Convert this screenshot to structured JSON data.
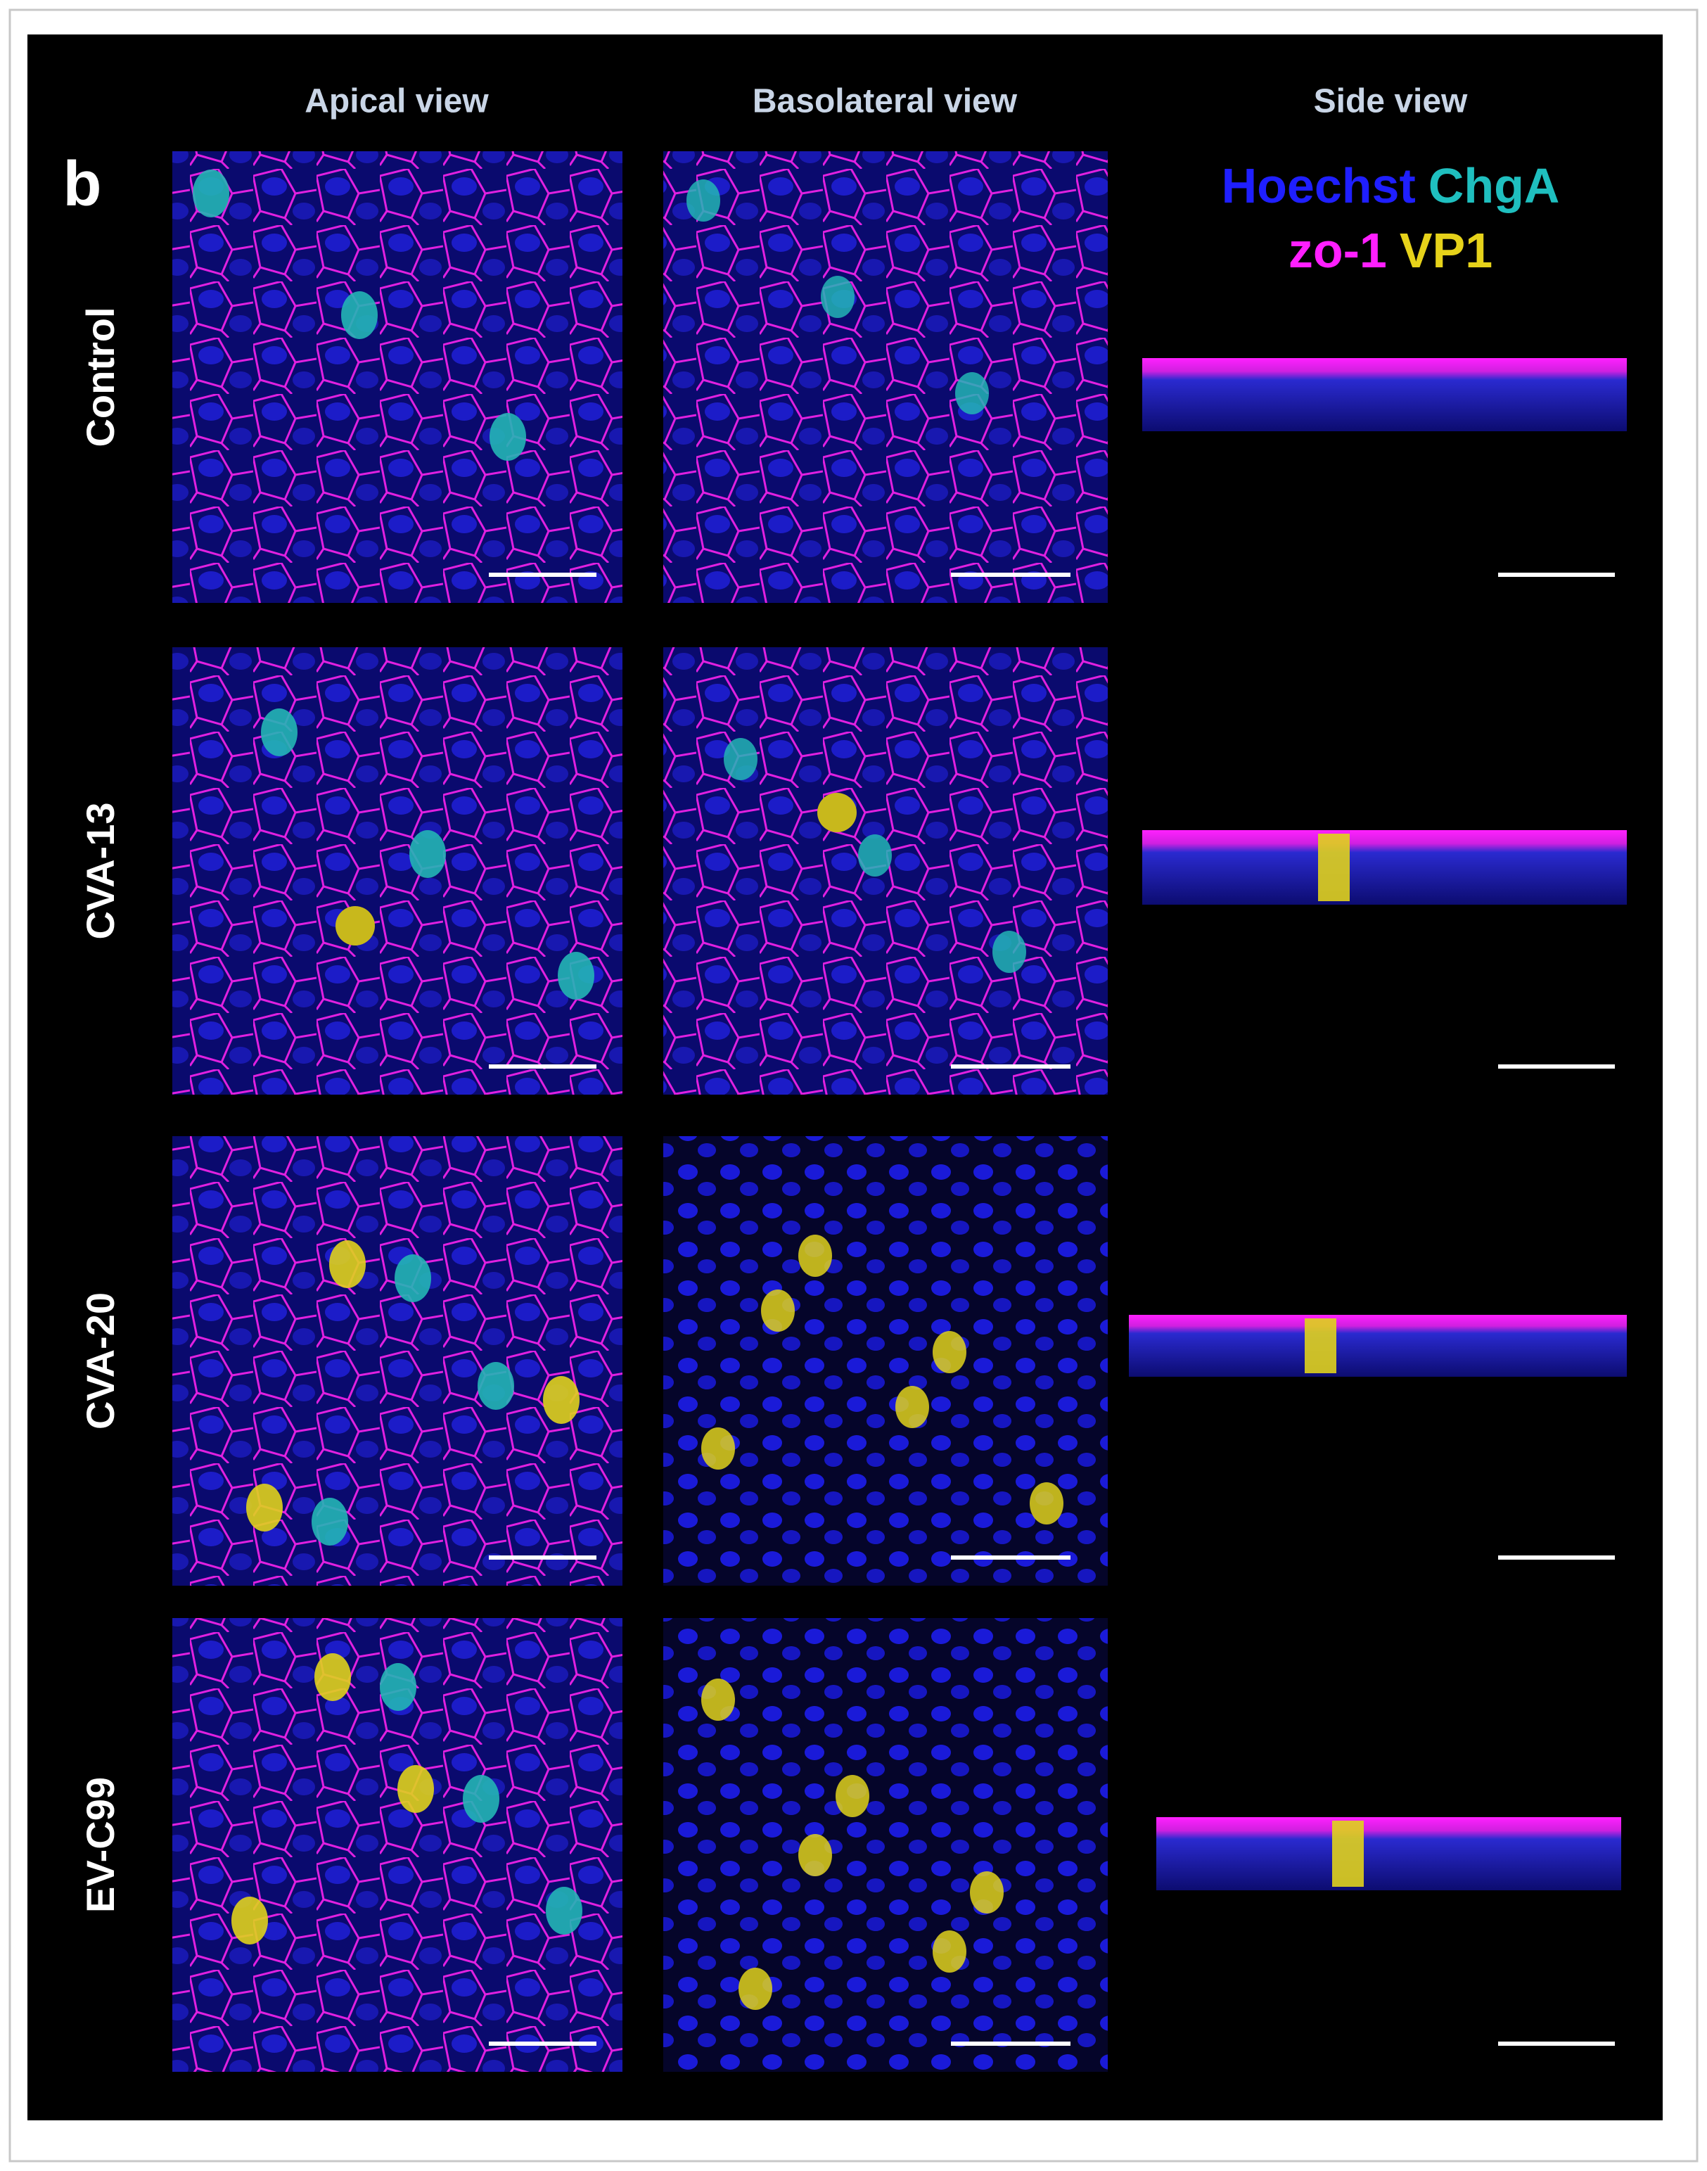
{
  "panel_label": "b",
  "columns": [
    "Apical view",
    "Basolateral view",
    "Side view"
  ],
  "rows": [
    "Control",
    "CVA-13",
    "CVA-20",
    "EV-C99"
  ],
  "legend": [
    {
      "label": "Hoechst",
      "color": "#1f1fff"
    },
    {
      "label": "ChgA",
      "color": "#1fbfbf"
    },
    {
      "label": "zo-1",
      "color": "#ff1fff"
    },
    {
      "label": "VP1",
      "color": "#e6d21a"
    }
  ]
}
